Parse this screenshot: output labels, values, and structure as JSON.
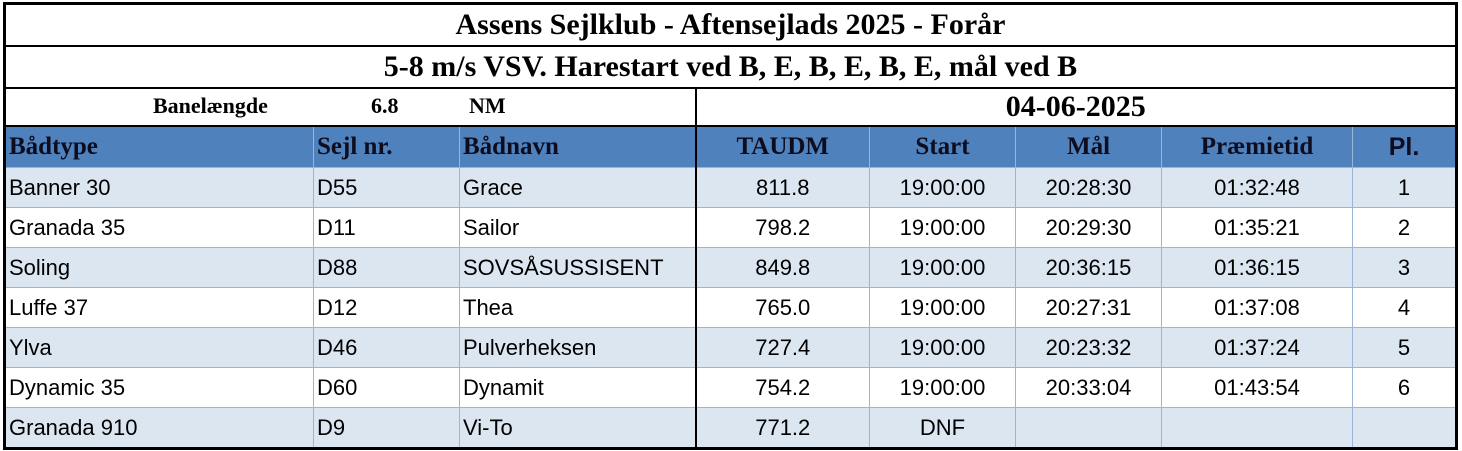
{
  "header": {
    "title": "Assens Sejlklub - Aftensejlads 2025 - Forår",
    "subtitle": "5-8 m/s VSV. Harestart ved B, E, B, E, B, E, mål ved B",
    "course_label": "Banelængde",
    "course_length": "6.8",
    "course_unit": "NM",
    "date": "04-06-2025"
  },
  "table": {
    "columns": [
      "Bådtype",
      "Sejl nr.",
      "Bådnavn",
      "TAUDM",
      "Start",
      "Mål",
      "Præmietid",
      "Pl."
    ],
    "rows": [
      [
        "Banner 30",
        "D55",
        "Grace",
        "811.8",
        "19:00:00",
        "20:28:30",
        "01:32:48",
        "1"
      ],
      [
        "Granada 35",
        "D11",
        "Sailor",
        "798.2",
        "19:00:00",
        "20:29:30",
        "01:35:21",
        "2"
      ],
      [
        "Soling",
        "D88",
        "SOVSÅSUSSISENT",
        "849.8",
        "19:00:00",
        "20:36:15",
        "01:36:15",
        "3"
      ],
      [
        "Luffe 37",
        "D12",
        "Thea",
        "765.0",
        "19:00:00",
        "20:27:31",
        "01:37:08",
        "4"
      ],
      [
        "Ylva",
        "D46",
        "Pulverheksen",
        "727.4",
        "19:00:00",
        "20:23:32",
        "01:37:24",
        "5"
      ],
      [
        "Dynamic 35",
        "D60",
        "Dynamit",
        "754.2",
        "19:00:00",
        "20:33:04",
        "01:43:54",
        "6"
      ],
      [
        "Granada 910",
        "D9",
        "Vi-To",
        "771.2",
        "DNF"
      ]
    ]
  }
}
